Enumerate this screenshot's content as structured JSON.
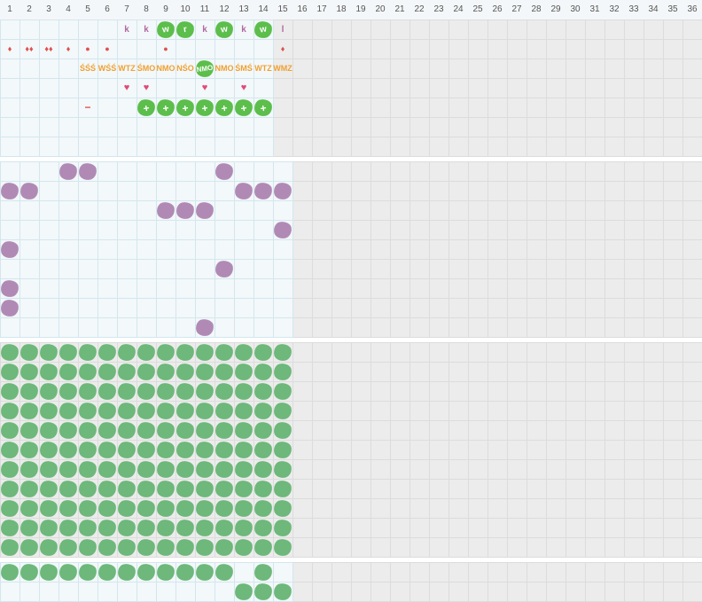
{
  "colors": {
    "green": "#6db87a",
    "purple": "#b08ab5",
    "lime": "#5cbe4b",
    "orange": "#f0a030",
    "red": "#e05050",
    "pink": "#e04a7a",
    "mauve": "#b06aa0"
  },
  "columns": [
    "1",
    "2",
    "3",
    "4",
    "5",
    "6",
    "7",
    "8",
    "9",
    "10",
    "11",
    "12",
    "13",
    "14",
    "15",
    "16",
    "17",
    "18",
    "19",
    "20",
    "21",
    "22",
    "23",
    "24",
    "25",
    "26",
    "27",
    "28",
    "29",
    "30",
    "31",
    "32",
    "33",
    "34",
    "35",
    "36"
  ],
  "row_k": {
    "7": {
      "kind": "text",
      "text": "k"
    },
    "8": {
      "kind": "text",
      "text": "k"
    },
    "9": {
      "kind": "blob",
      "text": "w"
    },
    "10": {
      "kind": "blob",
      "text": "r"
    },
    "11": {
      "kind": "text",
      "text": "k"
    },
    "12": {
      "kind": "blob",
      "text": "w"
    },
    "13": {
      "kind": "text",
      "text": "k"
    },
    "14": {
      "kind": "blob",
      "text": "w"
    },
    "15": {
      "kind": "text",
      "text": "l"
    }
  },
  "row_drops": {
    "1": {
      "icon": "drop-icon",
      "glyph": "♦"
    },
    "2": {
      "icon": "drops-cluster-icon",
      "glyph": "♦♦"
    },
    "3": {
      "icon": "double-drop-icon",
      "glyph": "♦♦"
    },
    "4": {
      "icon": "drop-icon",
      "glyph": "♦"
    },
    "5": {
      "icon": "dot-icon",
      "glyph": "●"
    },
    "6": {
      "icon": "dot-icon",
      "glyph": "●"
    },
    "9": {
      "icon": "dot-icon",
      "glyph": "●"
    },
    "15": {
      "icon": "drop-icon",
      "glyph": "♦"
    }
  },
  "row_tags": {
    "5": {
      "text": "ŚŚŚ",
      "kind": "text"
    },
    "6": {
      "text": "WŚŚ",
      "kind": "text"
    },
    "7": {
      "text": "WTZ",
      "kind": "text"
    },
    "8": {
      "text": "ŚMO",
      "kind": "text"
    },
    "9": {
      "text": "NMO",
      "kind": "text"
    },
    "10": {
      "text": "NŚO",
      "kind": "text"
    },
    "11": {
      "text": "NMO",
      "kind": "blob"
    },
    "12": {
      "text": "NMO",
      "kind": "text"
    },
    "13": {
      "text": "ŚMŚ",
      "kind": "text"
    },
    "14": {
      "text": "WTZ",
      "kind": "text"
    },
    "15": {
      "text": "WMZ",
      "kind": "text"
    }
  },
  "row_hearts": {
    "7": {
      "glyph": "♥"
    },
    "8": {
      "glyph": "♥"
    },
    "11": {
      "glyph": "♥"
    },
    "13": {
      "glyph": "♥"
    }
  },
  "row_plus": {
    "5": {
      "kind": "minus",
      "glyph": "−"
    },
    "8": {
      "kind": "plus",
      "glyph": "+"
    },
    "9": {
      "kind": "plus",
      "glyph": "+"
    },
    "10": {
      "kind": "plus",
      "glyph": "+"
    },
    "11": {
      "kind": "plus",
      "glyph": "+"
    },
    "12": {
      "kind": "plus",
      "glyph": "+"
    },
    "13": {
      "kind": "plus",
      "glyph": "+"
    },
    "14": {
      "kind": "plus",
      "glyph": "+"
    }
  },
  "purple_section": {
    "rows": [
      [
        4,
        5,
        12
      ],
      [
        1,
        2,
        13,
        14,
        15
      ],
      [
        9,
        10,
        11
      ],
      [
        15
      ],
      [
        1
      ],
      [
        12
      ],
      [
        1
      ],
      [
        1
      ],
      [
        11
      ]
    ]
  },
  "green_section": {
    "rows": 11,
    "cols": 15
  },
  "bottom_section": {
    "rows": [
      [
        1,
        2,
        3,
        4,
        5,
        6,
        7,
        8,
        9,
        10,
        11,
        12,
        14
      ],
      [
        13,
        14,
        15
      ]
    ]
  }
}
